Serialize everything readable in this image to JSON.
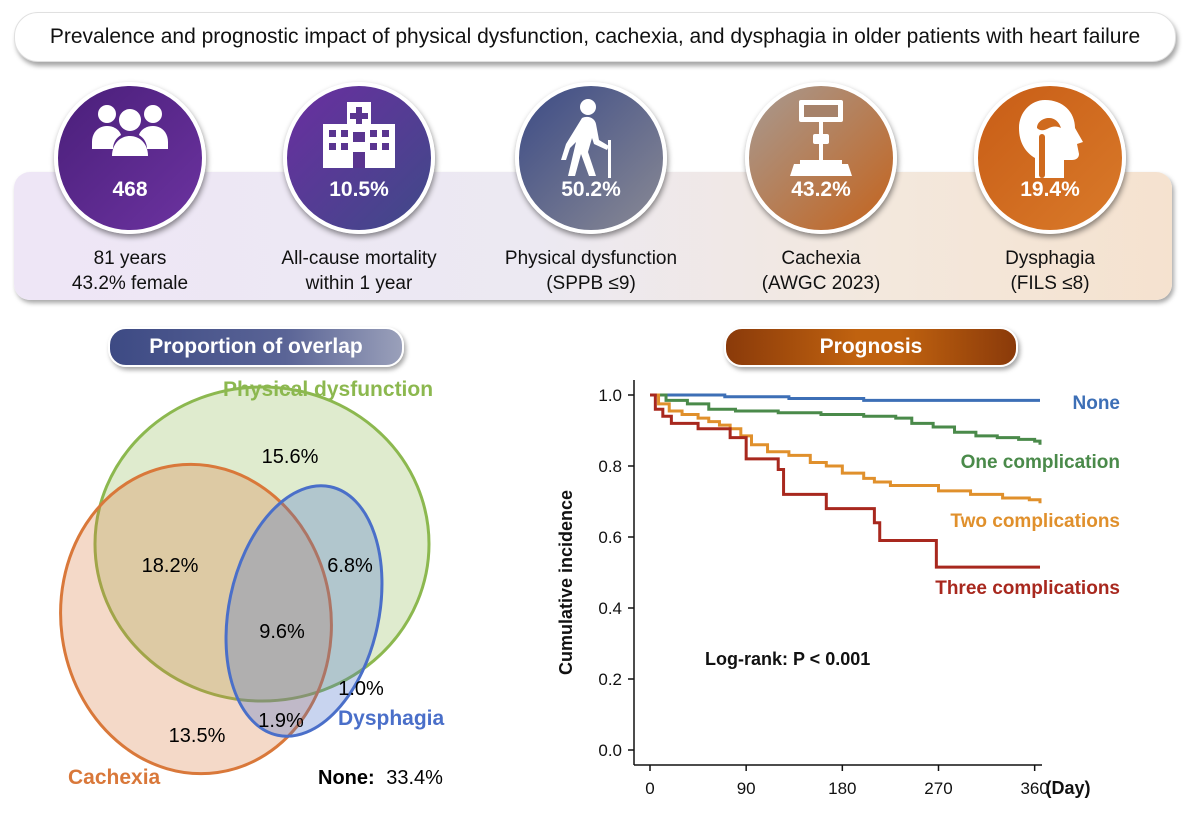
{
  "title": "Prevalence and prognostic impact of physical dysfunction, cachexia, and dysphagia in older patients with heart failure",
  "stats": [
    {
      "icon": "people-icon",
      "value": "468",
      "line1": "81 years",
      "line2": "43.2% female",
      "gradient": [
        "#4a1f7a",
        "#6c33a0"
      ]
    },
    {
      "icon": "hospital-icon",
      "value": "10.5%",
      "line1": "All-cause mortality",
      "line2": "within 1 year",
      "gradient": [
        "#6a2ea0",
        "#3f4a88"
      ]
    },
    {
      "icon": "elderly-walker-icon",
      "value": "50.2%",
      "line1": "Physical dysfunction",
      "line2": "(SPPB ≤9)",
      "gradient": [
        "#3c4b86",
        "#8a8a94"
      ]
    },
    {
      "icon": "scale-icon",
      "value": "43.2%",
      "line1": "Cachexia",
      "line2": "(AWGC 2023)",
      "gradient": [
        "#a79a92",
        "#c4631c"
      ]
    },
    {
      "icon": "head-throat-icon",
      "value": "19.4%",
      "line1": "Dysphagia",
      "line2": "(FILS ≤8)",
      "gradient": [
        "#c85d16",
        "#d97a2a"
      ]
    }
  ],
  "overlap": {
    "pill": "Proportion of overlap",
    "sets": {
      "physical": "Physical dysfunction",
      "cachexia": "Cachexia",
      "dysphagia": "Dysphagia"
    },
    "regions": {
      "physical_only": "15.6%",
      "physical_cachexia": "18.2%",
      "physical_dysphagia": "6.8%",
      "all_three": "9.6%",
      "dysphagia_only": "1.0%",
      "cachexia_dysphagia": "1.9%",
      "cachexia_only": "13.5%"
    },
    "none_label": "None:",
    "none_value": "33.4%",
    "colors": {
      "physical": "#8cb84f",
      "cachexia": "#d9783a",
      "dysphagia": "#4a6fc9"
    }
  },
  "prognosis": {
    "pill": "Prognosis"
  },
  "chart_data": {
    "type": "line",
    "ylabel": "Cumulative incidence",
    "xlabel": "(Day)",
    "xlim": [
      0,
      365
    ],
    "ylim": [
      0,
      1
    ],
    "xticks": [
      0,
      90,
      180,
      270,
      360
    ],
    "yticks": [
      "0.0",
      "0.2",
      "0.4",
      "0.6",
      "0.8",
      "1.0"
    ],
    "annotation": "Log-rank: P < 0.001",
    "series": [
      {
        "name": "None",
        "color": "#3d6fb6",
        "points": [
          [
            0,
            1.0
          ],
          [
            70,
            0.995
          ],
          [
            130,
            0.99
          ],
          [
            200,
            0.985
          ],
          [
            250,
            0.985
          ],
          [
            300,
            0.985
          ],
          [
            365,
            0.985
          ]
        ]
      },
      {
        "name": "One complication",
        "color": "#4a8a4a",
        "points": [
          [
            0,
            1.0
          ],
          [
            15,
            0.985
          ],
          [
            35,
            0.975
          ],
          [
            55,
            0.96
          ],
          [
            80,
            0.955
          ],
          [
            120,
            0.95
          ],
          [
            160,
            0.945
          ],
          [
            200,
            0.94
          ],
          [
            230,
            0.935
          ],
          [
            245,
            0.92
          ],
          [
            265,
            0.91
          ],
          [
            285,
            0.895
          ],
          [
            305,
            0.885
          ],
          [
            325,
            0.88
          ],
          [
            345,
            0.875
          ],
          [
            360,
            0.87
          ],
          [
            365,
            0.86
          ]
        ]
      },
      {
        "name": "Two complications",
        "color": "#e0902c",
        "points": [
          [
            0,
            1.0
          ],
          [
            8,
            0.975
          ],
          [
            18,
            0.955
          ],
          [
            30,
            0.945
          ],
          [
            45,
            0.935
          ],
          [
            55,
            0.925
          ],
          [
            65,
            0.915
          ],
          [
            75,
            0.905
          ],
          [
            85,
            0.885
          ],
          [
            95,
            0.86
          ],
          [
            110,
            0.84
          ],
          [
            130,
            0.83
          ],
          [
            150,
            0.81
          ],
          [
            165,
            0.8
          ],
          [
            180,
            0.78
          ],
          [
            200,
            0.765
          ],
          [
            210,
            0.755
          ],
          [
            225,
            0.745
          ],
          [
            270,
            0.73
          ],
          [
            300,
            0.72
          ],
          [
            330,
            0.71
          ],
          [
            355,
            0.705
          ],
          [
            365,
            0.695
          ]
        ]
      },
      {
        "name": "Three complications",
        "color": "#a8281e",
        "points": [
          [
            0,
            1.0
          ],
          [
            5,
            0.96
          ],
          [
            12,
            0.94
          ],
          [
            20,
            0.92
          ],
          [
            45,
            0.905
          ],
          [
            75,
            0.88
          ],
          [
            90,
            0.82
          ],
          [
            120,
            0.79
          ],
          [
            125,
            0.72
          ],
          [
            160,
            0.72
          ],
          [
            165,
            0.68
          ],
          [
            210,
            0.64
          ],
          [
            215,
            0.59
          ],
          [
            265,
            0.59
          ],
          [
            268,
            0.515
          ],
          [
            365,
            0.515
          ]
        ]
      }
    ]
  }
}
